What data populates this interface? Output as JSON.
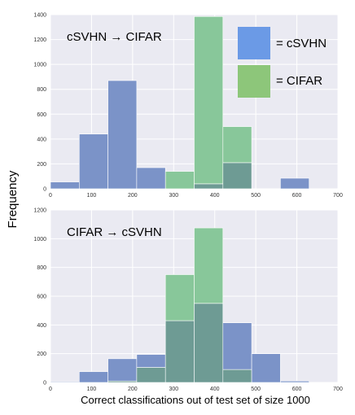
{
  "figure": {
    "ylabel": "Frequency",
    "xlabel": "Correct classifications out of test set of size 1000",
    "legend": [
      {
        "label": "= cSVHN",
        "color": "#6b9ae6"
      },
      {
        "label": "= CIFAR",
        "color": "#8dc67a"
      }
    ]
  },
  "colors": {
    "svhn": "#7b93c8",
    "cifar": "#88c79a",
    "overlap": "#6e9b94",
    "panel_bg": "#eaeaf2",
    "grid": "#ffffff"
  },
  "chart_data": [
    {
      "type": "bar",
      "title": "cSVHN → CIFAR",
      "xlim": [
        0,
        700
      ],
      "ylim": [
        0,
        1400
      ],
      "xticks": [
        0,
        100,
        200,
        300,
        400,
        500,
        600,
        700
      ],
      "yticks": [
        0,
        200,
        400,
        600,
        800,
        1000,
        1200,
        1400
      ],
      "bin_edges": [
        0,
        70,
        140,
        210,
        280,
        350,
        420,
        490,
        560,
        630
      ],
      "series": [
        {
          "name": "cSVHN",
          "values": [
            55,
            440,
            870,
            170,
            0,
            40,
            210,
            0,
            85,
            5
          ]
        },
        {
          "name": "CIFAR",
          "values": [
            0,
            0,
            0,
            0,
            140,
            1385,
            500,
            0,
            0,
            0
          ]
        }
      ]
    },
    {
      "type": "bar",
      "title": "CIFAR → cSVHN",
      "xlim": [
        0,
        700
      ],
      "ylim": [
        0,
        1200
      ],
      "xticks": [
        0,
        100,
        200,
        300,
        400,
        500,
        600,
        700
      ],
      "yticks": [
        0,
        200,
        400,
        600,
        800,
        1000,
        1200
      ],
      "bin_edges": [
        0,
        70,
        140,
        210,
        280,
        350,
        420,
        490,
        560,
        630
      ],
      "series": [
        {
          "name": "cSVHN",
          "values": [
            5,
            75,
            165,
            195,
            430,
            550,
            415,
            200,
            10,
            0
          ]
        },
        {
          "name": "CIFAR",
          "values": [
            0,
            0,
            10,
            105,
            750,
            1075,
            90,
            0,
            0,
            0
          ]
        }
      ]
    }
  ]
}
